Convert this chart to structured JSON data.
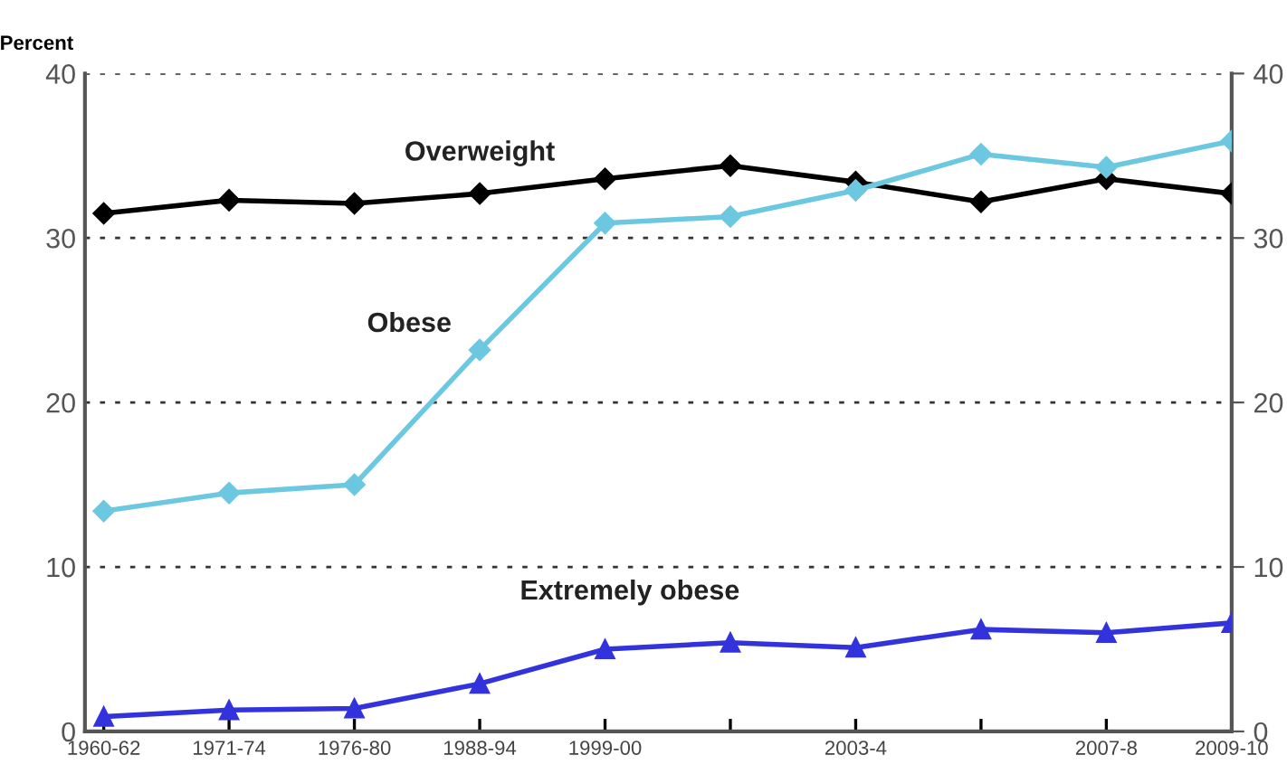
{
  "chart_data": {
    "type": "line",
    "ylabel": "Percent",
    "categories": [
      "1960-62",
      "1971-74",
      "1976-80",
      "1988-94",
      "1999-00",
      null,
      "2003-4",
      null,
      "2007-8",
      "2009-10"
    ],
    "series": [
      {
        "name": "Overweight",
        "color": "#000000",
        "marker": "diamond",
        "values": [
          31.5,
          32.3,
          32.1,
          32.7,
          33.6,
          34.4,
          33.4,
          32.2,
          33.6,
          32.7
        ]
      },
      {
        "name": "Obese",
        "color": "#6cc8e0",
        "marker": "diamond",
        "values": [
          13.4,
          14.5,
          15.0,
          23.2,
          30.9,
          31.3,
          32.9,
          35.1,
          34.3,
          35.9
        ]
      },
      {
        "name": "Extremely obese",
        "color": "#3333dd",
        "marker": "triangle",
        "values": [
          0.9,
          1.3,
          1.4,
          2.9,
          5.0,
          5.4,
          5.1,
          6.2,
          6.0,
          6.6
        ]
      }
    ],
    "ylim": [
      0,
      40
    ],
    "yticks": [
      0,
      10,
      20,
      30,
      40
    ],
    "y2lim": [
      0,
      40
    ],
    "y2ticks": [
      0,
      10,
      20,
      30,
      40
    ],
    "grid": "y",
    "legend": false,
    "line_style": "solid"
  }
}
